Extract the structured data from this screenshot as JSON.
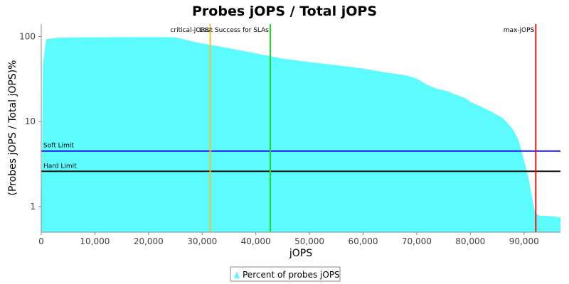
{
  "chart_data": {
    "type": "area",
    "title": "Probes jOPS / Total jOPS",
    "xlabel": "jOPS",
    "ylabel": "(Probes jOPS / Total jOPS)%",
    "xlim": [
      0,
      96800
    ],
    "ylim": [
      0.5,
      140
    ],
    "y_scale": "log",
    "grid": false,
    "legend_position": "bottom",
    "x_ticks": [
      0,
      10000,
      20000,
      30000,
      40000,
      50000,
      60000,
      70000,
      80000,
      90000
    ],
    "x_tick_labels": [
      "0",
      "10,000",
      "20,000",
      "30,000",
      "40,000",
      "50,000",
      "60,000",
      "70,000",
      "80,000",
      "90,000"
    ],
    "y_ticks": [
      1,
      10,
      100
    ],
    "y_tick_labels": [
      "1",
      "10",
      "100"
    ],
    "series": [
      {
        "name": "Percent of probes jOPS",
        "color": "#5cfcfe",
        "x": [
          0,
          300,
          900,
          3000,
          10000,
          20000,
          25000,
          26000,
          27000,
          28000,
          30000,
          32000,
          35000,
          38000,
          42000,
          45000,
          50000,
          55000,
          60000,
          64000,
          68000,
          70000,
          72000,
          74000,
          75500,
          77000,
          79000,
          80000,
          82000,
          84000,
          86000,
          87000,
          88000,
          89000,
          90000,
          90800,
          91500,
          92000,
          92500,
          93000,
          94000,
          95000,
          96000,
          96800
        ],
        "values": [
          0.5,
          45,
          93,
          97,
          98,
          98.5,
          98,
          95,
          91,
          88,
          83,
          79,
          73,
          67,
          60,
          55,
          50,
          46,
          42,
          38,
          35,
          32,
          27,
          24,
          23,
          21,
          19,
          17,
          15,
          13,
          11,
          9.5,
          8,
          6,
          3.5,
          2.2,
          1.3,
          0.9,
          0.8,
          0.78,
          0.78,
          0.77,
          0.76,
          0.74
        ]
      }
    ],
    "vertical_markers": [
      {
        "label": "critical-jOPS",
        "x": 31500,
        "color": "#f5c030"
      },
      {
        "label": "Last Success for SLAs",
        "x": 42700,
        "color": "#22dd22"
      },
      {
        "label": "max-jOPS",
        "x": 92200,
        "color": "#ee1111"
      }
    ],
    "horizontal_markers": [
      {
        "label": "Soft Limit",
        "y": 4.5,
        "color": "#1a1ae6"
      },
      {
        "label": "Hard Limit",
        "y": 2.6,
        "color": "#111111"
      }
    ]
  }
}
